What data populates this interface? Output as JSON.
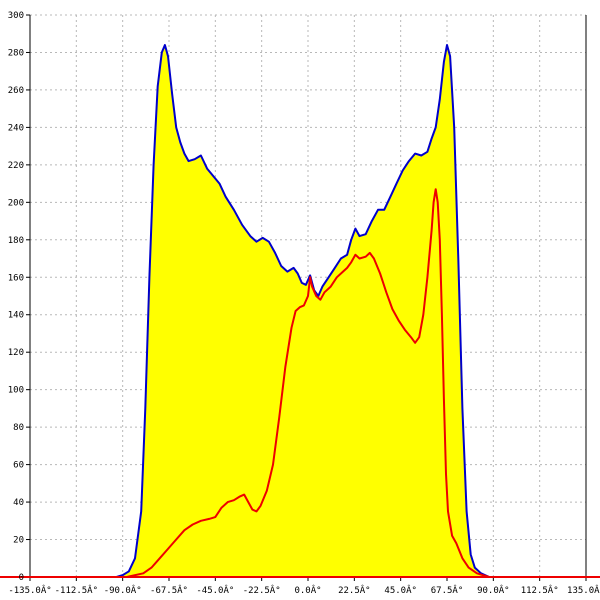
{
  "chart_data": {
    "type": "area",
    "title": "",
    "xlabel": "",
    "ylabel": "",
    "xlim": [
      -135,
      135
    ],
    "ylim": [
      0,
      300
    ],
    "grid": true,
    "x_ticks": [
      -135,
      -112.5,
      -90,
      -67.5,
      -45,
      -22.5,
      0,
      22.5,
      45,
      67.5,
      90,
      112.5,
      135
    ],
    "x_tick_labels": [
      "-135.0Â°",
      "-112.5Â°",
      "-90.0Â°",
      "-67.5Â°",
      "-45.0Â°",
      "-22.5Â°",
      "0.0Â°",
      "22.5Â°",
      "45.0Â°",
      "67.5Â°",
      "90.0Â°",
      "112.5Â°",
      "135.0Â°"
    ],
    "y_ticks": [
      0,
      20,
      40,
      60,
      80,
      100,
      120,
      140,
      160,
      180,
      200,
      220,
      240,
      260,
      280,
      300
    ],
    "y_tick_labels": [
      "0",
      "20",
      "40",
      "60",
      "80",
      "100",
      "120",
      "140",
      "160",
      "180",
      "200",
      "220",
      "240",
      "260",
      "280",
      "300"
    ],
    "series": [
      {
        "color": "#0000cc",
        "fill": "#ffff00",
        "points": [
          [
            -93,
            0
          ],
          [
            -90,
            1
          ],
          [
            -87,
            3
          ],
          [
            -84,
            10
          ],
          [
            -81,
            35
          ],
          [
            -79,
            90
          ],
          [
            -77,
            160
          ],
          [
            -75,
            220
          ],
          [
            -73,
            262
          ],
          [
            -71,
            280
          ],
          [
            -69.5,
            284
          ],
          [
            -68,
            278
          ],
          [
            -66,
            258
          ],
          [
            -64,
            240
          ],
          [
            -62,
            232
          ],
          [
            -60,
            226
          ],
          [
            -58,
            222
          ],
          [
            -55,
            223
          ],
          [
            -52,
            225
          ],
          [
            -49,
            218
          ],
          [
            -46,
            214
          ],
          [
            -43,
            210
          ],
          [
            -40,
            203
          ],
          [
            -36,
            196
          ],
          [
            -32,
            188
          ],
          [
            -28,
            182
          ],
          [
            -25,
            179
          ],
          [
            -22,
            181
          ],
          [
            -19,
            179
          ],
          [
            -16,
            173
          ],
          [
            -13,
            166
          ],
          [
            -10,
            163
          ],
          [
            -7,
            165
          ],
          [
            -5,
            162
          ],
          [
            -3,
            157
          ],
          [
            -1,
            156
          ],
          [
            1,
            161
          ],
          [
            3,
            153
          ],
          [
            5,
            150
          ],
          [
            7,
            155
          ],
          [
            10,
            160
          ],
          [
            13,
            165
          ],
          [
            16,
            170
          ],
          [
            19,
            172
          ],
          [
            21,
            180
          ],
          [
            23,
            186
          ],
          [
            25,
            182
          ],
          [
            28,
            183
          ],
          [
            31,
            190
          ],
          [
            34,
            196
          ],
          [
            37,
            196
          ],
          [
            40,
            203
          ],
          [
            43,
            210
          ],
          [
            46,
            217
          ],
          [
            49,
            222
          ],
          [
            52,
            226
          ],
          [
            55,
            225
          ],
          [
            58,
            227
          ],
          [
            60,
            234
          ],
          [
            62,
            240
          ],
          [
            64,
            255
          ],
          [
            66,
            275
          ],
          [
            67.5,
            284
          ],
          [
            69,
            278
          ],
          [
            71,
            240
          ],
          [
            73,
            170
          ],
          [
            75,
            90
          ],
          [
            77,
            35
          ],
          [
            79,
            12
          ],
          [
            81,
            5
          ],
          [
            84,
            2
          ],
          [
            88,
            0
          ]
        ]
      },
      {
        "color": "#ee0000",
        "points": [
          [
            -88,
            0
          ],
          [
            -80,
            2
          ],
          [
            -76,
            5
          ],
          [
            -72,
            10
          ],
          [
            -68,
            15
          ],
          [
            -64,
            20
          ],
          [
            -60,
            25
          ],
          [
            -56,
            28
          ],
          [
            -52,
            30
          ],
          [
            -48,
            31
          ],
          [
            -45,
            32
          ],
          [
            -42,
            37
          ],
          [
            -39,
            40
          ],
          [
            -36,
            41
          ],
          [
            -33,
            43
          ],
          [
            -31,
            44
          ],
          [
            -29,
            40
          ],
          [
            -27,
            36
          ],
          [
            -25,
            35
          ],
          [
            -23,
            38
          ],
          [
            -20,
            46
          ],
          [
            -17,
            60
          ],
          [
            -14,
            85
          ],
          [
            -11,
            112
          ],
          [
            -8,
            133
          ],
          [
            -6,
            142
          ],
          [
            -4,
            144
          ],
          [
            -2,
            145
          ],
          [
            0,
            150
          ],
          [
            1,
            160
          ],
          [
            2,
            155
          ],
          [
            4,
            150
          ],
          [
            6,
            148
          ],
          [
            8,
            152
          ],
          [
            11,
            155
          ],
          [
            14,
            160
          ],
          [
            17,
            163
          ],
          [
            19,
            165
          ],
          [
            21,
            168
          ],
          [
            23,
            172
          ],
          [
            25,
            170
          ],
          [
            28,
            171
          ],
          [
            30,
            173
          ],
          [
            32,
            170
          ],
          [
            35,
            162
          ],
          [
            38,
            152
          ],
          [
            41,
            143
          ],
          [
            44,
            137
          ],
          [
            47,
            132
          ],
          [
            50,
            128
          ],
          [
            52,
            125
          ],
          [
            54,
            128
          ],
          [
            56,
            140
          ],
          [
            58,
            160
          ],
          [
            60,
            185
          ],
          [
            61,
            200
          ],
          [
            62,
            207
          ],
          [
            63,
            200
          ],
          [
            64,
            180
          ],
          [
            65,
            140
          ],
          [
            66,
            95
          ],
          [
            67,
            55
          ],
          [
            68,
            35
          ],
          [
            70,
            22
          ],
          [
            72,
            18
          ],
          [
            75,
            10
          ],
          [
            78,
            5
          ],
          [
            82,
            2
          ],
          [
            88,
            0
          ]
        ]
      }
    ]
  }
}
